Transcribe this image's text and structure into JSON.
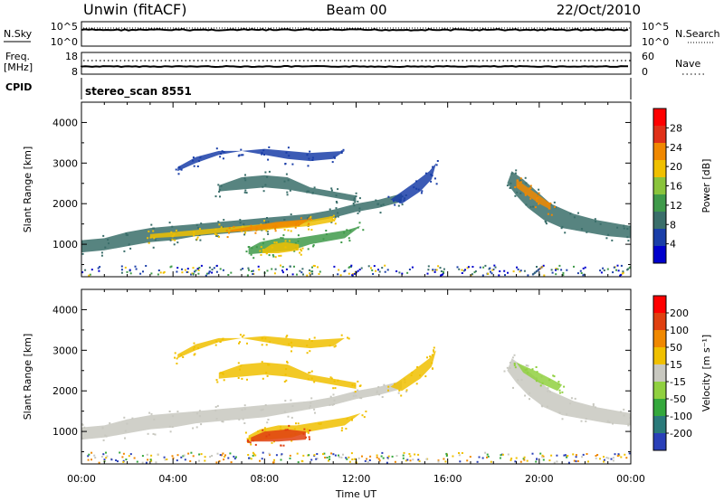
{
  "header": {
    "site": "Unwin (fitACF)",
    "beam": "Beam 00",
    "date": "22/Oct/2010"
  },
  "noise_panel": {
    "left_label": "N.Sky",
    "left_ticks": [
      "10^5",
      "10^0"
    ],
    "right_label": "N.Search",
    "right_ticks": [
      "10^5",
      "10^0"
    ]
  },
  "freq_panel": {
    "left_label_top": "Freq.",
    "left_label_bottom": "[MHz]",
    "left_ticks": [
      "18",
      "8"
    ],
    "right_label": "Nave",
    "right_ticks": [
      "60",
      "0"
    ]
  },
  "cpid": {
    "label": "CPID",
    "value": "stereo_scan 8551"
  },
  "chart_data": [
    {
      "type": "heatmap",
      "name": "power",
      "ylabel": "Slant Range [km]",
      "ylim": [
        200,
        4500
      ],
      "yticks": [
        1000,
        2000,
        3000,
        4000
      ],
      "colorbar_label": "Power [dB]",
      "colorbar_ticks": [
        4,
        8,
        12,
        16,
        20,
        24,
        28
      ],
      "colorbar_range": [
        0,
        32
      ],
      "colors": [
        "#0000cc",
        "#1a3ea8",
        "#3a6e6a",
        "#3f9a4a",
        "#8ac43c",
        "#f0c000",
        "#f08800",
        "#e03018",
        "#ff0000"
      ],
      "regions": [
        {
          "path": [
            [
              0,
              1100
            ],
            [
              1,
              1150
            ],
            [
              2,
              1300
            ],
            [
              3,
              1400
            ],
            [
              4,
              1450
            ],
            [
              5,
              1500
            ],
            [
              6,
              1550
            ],
            [
              7,
              1600
            ],
            [
              8,
              1650
            ],
            [
              9,
              1700
            ],
            [
              10,
              1750
            ],
            [
              11,
              1850
            ],
            [
              12,
              2000
            ],
            [
              13,
              2100
            ],
            [
              14,
              2250
            ],
            [
              14,
              2050
            ],
            [
              13,
              1900
            ],
            [
              12,
              1800
            ],
            [
              11,
              1650
            ],
            [
              10,
              1550
            ],
            [
              9,
              1450
            ],
            [
              8,
              1350
            ],
            [
              7,
              1300
            ],
            [
              6,
              1250
            ],
            [
              5,
              1200
            ],
            [
              4,
              1100
            ],
            [
              3,
              1050
            ],
            [
              2,
              950
            ],
            [
              1,
              850
            ],
            [
              0,
              800
            ]
          ],
          "power": 10
        },
        {
          "path": [
            [
              3,
              1250
            ],
            [
              4,
              1300
            ],
            [
              5,
              1350
            ],
            [
              6,
              1400
            ],
            [
              7,
              1450
            ],
            [
              8,
              1500
            ],
            [
              9,
              1550
            ],
            [
              10,
              1600
            ],
            [
              11,
              1700
            ],
            [
              11,
              1550
            ],
            [
              10,
              1450
            ],
            [
              9,
              1400
            ],
            [
              8,
              1350
            ],
            [
              7,
              1320
            ],
            [
              6,
              1280
            ],
            [
              5,
              1220
            ],
            [
              4,
              1180
            ],
            [
              3,
              1150
            ]
          ],
          "power": 18
        },
        {
          "path": [
            [
              6.5,
              1350
            ],
            [
              7.5,
              1450
            ],
            [
              8.5,
              1550
            ],
            [
              9.5,
              1600
            ],
            [
              10,
              1620
            ],
            [
              9.5,
              1450
            ],
            [
              8.5,
              1400
            ],
            [
              7.5,
              1350
            ],
            [
              6.5,
              1300
            ]
          ],
          "power": 24
        },
        {
          "path": [
            [
              7.3,
              900
            ],
            [
              7.8,
              1050
            ],
            [
              8.6,
              1150
            ],
            [
              9.4,
              1150
            ],
            [
              10.5,
              1250
            ],
            [
              11.6,
              1350
            ],
            [
              12.2,
              1450
            ],
            [
              11.5,
              1150
            ],
            [
              10,
              1000
            ],
            [
              9.2,
              850
            ],
            [
              8.2,
              800
            ],
            [
              7.3,
              750
            ]
          ],
          "power": 12
        },
        {
          "path": [
            [
              7.9,
              850
            ],
            [
              8.3,
              1000
            ],
            [
              8.9,
              1050
            ],
            [
              9.5,
              1000
            ],
            [
              9.5,
              850
            ],
            [
              8.6,
              780
            ],
            [
              7.9,
              780
            ]
          ],
          "power": 20
        },
        {
          "path": [
            [
              4.2,
              2900
            ],
            [
              5,
              3150
            ],
            [
              6,
              3300
            ],
            [
              7,
              3300
            ],
            [
              8,
              3200
            ],
            [
              9,
              3100
            ],
            [
              10,
              3050
            ],
            [
              11,
              3100
            ],
            [
              11.5,
              3300
            ],
            [
              10,
              3250
            ],
            [
              9,
              3300
            ],
            [
              8,
              3350
            ],
            [
              7,
              3300
            ],
            [
              6,
              3200
            ],
            [
              5,
              3000
            ],
            [
              4.2,
              2800
            ]
          ],
          "power": 6
        },
        {
          "path": [
            [
              6,
              2450
            ],
            [
              7,
              2650
            ],
            [
              8,
              2700
            ],
            [
              9,
              2650
            ],
            [
              10,
              2400
            ],
            [
              11,
              2300
            ],
            [
              12,
              2200
            ],
            [
              12,
              2050
            ],
            [
              11,
              2150
            ],
            [
              10,
              2250
            ],
            [
              9,
              2350
            ],
            [
              8,
              2400
            ],
            [
              7,
              2350
            ],
            [
              6,
              2300
            ]
          ],
          "power": 8
        },
        {
          "path": [
            [
              13.5,
              2100
            ],
            [
              14.5,
              2500
            ],
            [
              15.2,
              2800
            ],
            [
              15.5,
              3000
            ],
            [
              15.3,
              2600
            ],
            [
              14.8,
              2300
            ],
            [
              14,
              2000
            ]
          ],
          "power": 6
        },
        {
          "path": [
            [
              18.8,
              2800
            ],
            [
              19.3,
              2600
            ],
            [
              19.9,
              2300
            ],
            [
              20.5,
              2000
            ],
            [
              21.5,
              1750
            ],
            [
              22.5,
              1600
            ],
            [
              23.5,
              1500
            ],
            [
              24,
              1450
            ],
            [
              24,
              1150
            ],
            [
              23,
              1200
            ],
            [
              22,
              1300
            ],
            [
              21,
              1400
            ],
            [
              20.2,
              1600
            ],
            [
              19.5,
              1900
            ],
            [
              19,
              2200
            ],
            [
              18.6,
              2500
            ]
          ],
          "power": 10
        },
        {
          "path": [
            [
              19,
              2600
            ],
            [
              19.5,
              2400
            ],
            [
              20,
              2200
            ],
            [
              20.5,
              2000
            ],
            [
              20.5,
              1850
            ],
            [
              20,
              2000
            ],
            [
              19.5,
              2200
            ],
            [
              19,
              2400
            ]
          ],
          "power": 22
        }
      ]
    },
    {
      "type": "heatmap",
      "name": "velocity",
      "xlabel": "Time UT",
      "x_ticks": [
        "00:00",
        "04:00",
        "08:00",
        "12:00",
        "16:00",
        "20:00",
        "00:00"
      ],
      "xlim": [
        0,
        24
      ],
      "ylabel": "Slant Range [km]",
      "ylim": [
        200,
        4500
      ],
      "yticks": [
        1000,
        2000,
        3000,
        4000
      ],
      "colorbar_label": "Velocity [m s⁻¹]",
      "colorbar_ticks": [
        200,
        100,
        50,
        15,
        -15,
        -50,
        -100,
        -200
      ],
      "colors": [
        "#2a40b8",
        "#2a7a7a",
        "#34a83c",
        "#90d040",
        "#c8c8c0",
        "#f0c000",
        "#f08800",
        "#e04010",
        "#ff0000"
      ],
      "regions": [
        {
          "path": [
            [
              0,
              1100
            ],
            [
              1,
              1150
            ],
            [
              2,
              1300
            ],
            [
              3,
              1400
            ],
            [
              4,
              1450
            ],
            [
              5,
              1500
            ],
            [
              6,
              1550
            ],
            [
              7,
              1600
            ],
            [
              8,
              1650
            ],
            [
              9,
              1700
            ],
            [
              10,
              1750
            ],
            [
              11,
              1850
            ],
            [
              12,
              2000
            ],
            [
              13,
              2100
            ],
            [
              14,
              2250
            ],
            [
              14,
              2050
            ],
            [
              13,
              1900
            ],
            [
              12,
              1800
            ],
            [
              11,
              1650
            ],
            [
              10,
              1550
            ],
            [
              9,
              1450
            ],
            [
              8,
              1350
            ],
            [
              7,
              1300
            ],
            [
              6,
              1250
            ],
            [
              5,
              1200
            ],
            [
              4,
              1100
            ],
            [
              3,
              1050
            ],
            [
              2,
              950
            ],
            [
              1,
              850
            ],
            [
              0,
              800
            ]
          ],
          "velocity": 0
        },
        {
          "path": [
            [
              4.2,
              2900
            ],
            [
              5,
              3150
            ],
            [
              6,
              3300
            ],
            [
              7,
              3300
            ],
            [
              8,
              3200
            ],
            [
              9,
              3100
            ],
            [
              10,
              3050
            ],
            [
              11,
              3100
            ],
            [
              11.5,
              3300
            ],
            [
              10,
              3250
            ],
            [
              9,
              3300
            ],
            [
              8,
              3350
            ],
            [
              7,
              3300
            ],
            [
              6,
              3200
            ],
            [
              5,
              3000
            ],
            [
              4.2,
              2800
            ]
          ],
          "velocity": -30
        },
        {
          "path": [
            [
              6,
              2450
            ],
            [
              7,
              2650
            ],
            [
              8,
              2700
            ],
            [
              9,
              2650
            ],
            [
              10,
              2400
            ],
            [
              11,
              2300
            ],
            [
              12,
              2200
            ],
            [
              12,
              2050
            ],
            [
              11,
              2150
            ],
            [
              10,
              2250
            ],
            [
              9,
              2350
            ],
            [
              8,
              2400
            ],
            [
              7,
              2350
            ],
            [
              6,
              2300
            ]
          ],
          "velocity": -20
        },
        {
          "path": [
            [
              7.3,
              900
            ],
            [
              7.8,
              1050
            ],
            [
              8.6,
              1150
            ],
            [
              9.4,
              1150
            ],
            [
              10.5,
              1250
            ],
            [
              11.6,
              1350
            ],
            [
              12.2,
              1450
            ],
            [
              11.5,
              1150
            ],
            [
              10,
              1000
            ],
            [
              9.2,
              850
            ],
            [
              8.2,
              800
            ],
            [
              7.3,
              750
            ]
          ],
          "velocity": -40
        },
        {
          "path": [
            [
              7.4,
              850
            ],
            [
              8,
              1000
            ],
            [
              9,
              1050
            ],
            [
              9.8,
              1000
            ],
            [
              9.8,
              800
            ],
            [
              8.6,
              750
            ],
            [
              7.4,
              750
            ]
          ],
          "velocity": -120
        },
        {
          "path": [
            [
              13.5,
              2100
            ],
            [
              14.5,
              2500
            ],
            [
              15.2,
              2800
            ],
            [
              15.5,
              3000
            ],
            [
              15.3,
              2600
            ],
            [
              14.8,
              2300
            ],
            [
              14,
              2000
            ]
          ],
          "velocity": -30
        },
        {
          "path": [
            [
              18.8,
              2800
            ],
            [
              19.3,
              2600
            ],
            [
              19.9,
              2300
            ],
            [
              20.5,
              2000
            ],
            [
              21.5,
              1750
            ],
            [
              22.5,
              1600
            ],
            [
              23.5,
              1500
            ],
            [
              24,
              1450
            ],
            [
              24,
              1150
            ],
            [
              23,
              1200
            ],
            [
              22,
              1300
            ],
            [
              21,
              1400
            ],
            [
              20.2,
              1600
            ],
            [
              19.5,
              1900
            ],
            [
              19,
              2200
            ],
            [
              18.6,
              2500
            ]
          ],
          "velocity": 0
        },
        {
          "path": [
            [
              19,
              2700
            ],
            [
              19.8,
              2500
            ],
            [
              20.5,
              2300
            ],
            [
              21,
              2150
            ],
            [
              20.8,
              2000
            ],
            [
              20,
              2200
            ],
            [
              19.3,
              2450
            ]
          ],
          "velocity": 30
        }
      ]
    }
  ]
}
